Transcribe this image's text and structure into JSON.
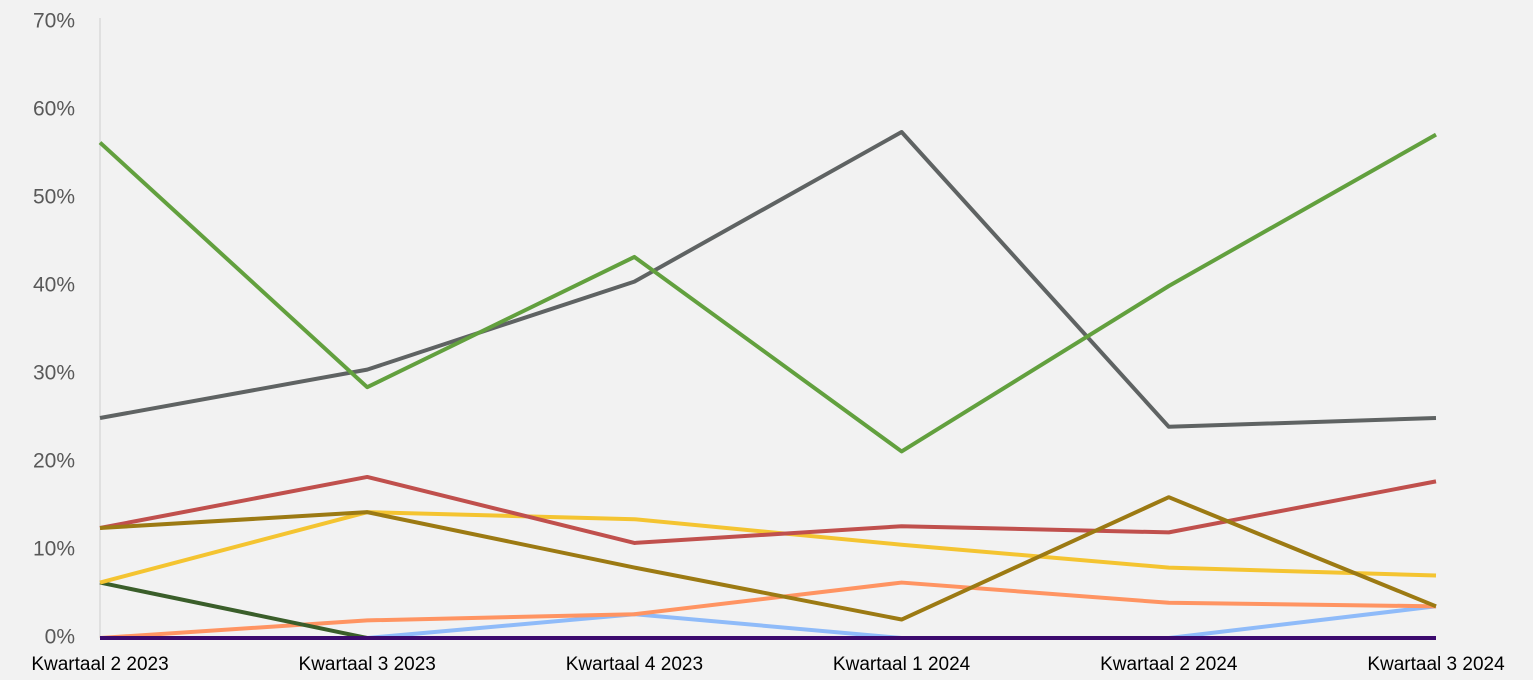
{
  "chart_data": {
    "type": "line",
    "categories": [
      "Kwartaal 2 2023",
      "Kwartaal 3 2023",
      "Kwartaal 4 2023",
      "Kwartaal 1 2024",
      "Kwartaal 2 2024",
      "Kwartaal 3 2024"
    ],
    "series": [
      {
        "color": "#8fbbf9",
        "values": [
          0,
          0,
          2.7,
          0,
          0,
          3.6
        ]
      },
      {
        "color": "#ff9462",
        "values": [
          0,
          2,
          2.7,
          6.3,
          4,
          3.6
        ]
      },
      {
        "color": "#3a5e2a",
        "values": [
          6.3,
          0,
          null,
          null,
          null,
          null
        ]
      },
      {
        "color": "#f4c431",
        "values": [
          6.3,
          14.3,
          13.5,
          10.6,
          8,
          7.1
        ]
      },
      {
        "color": "#c0504d",
        "values": [
          12.5,
          18.3,
          10.8,
          12.7,
          12,
          17.8
        ]
      },
      {
        "color": "#9c7a13",
        "values": [
          12.5,
          14.3,
          8,
          2.1,
          16,
          3.6
        ]
      },
      {
        "color": "#5f6363",
        "values": [
          25,
          30.5,
          40.5,
          57.5,
          24,
          25
        ]
      },
      {
        "color": "#62a03e",
        "values": [
          56.3,
          28.5,
          43.3,
          21.2,
          40,
          57.2
        ]
      },
      {
        "color": "#3c0a6e",
        "values": [
          0,
          0,
          0,
          0,
          0,
          0
        ]
      }
    ],
    "ylim": [
      0,
      70
    ],
    "yticks": [
      {
        "value": 0,
        "label": "0%"
      },
      {
        "value": 10,
        "label": "10%"
      },
      {
        "value": 20,
        "label": "20%"
      },
      {
        "value": 30,
        "label": "30%"
      },
      {
        "value": 40,
        "label": "40%"
      },
      {
        "value": 50,
        "label": "50%"
      },
      {
        "value": 60,
        "label": "60%"
      },
      {
        "value": 70,
        "label": "70%"
      }
    ],
    "grid": false
  }
}
